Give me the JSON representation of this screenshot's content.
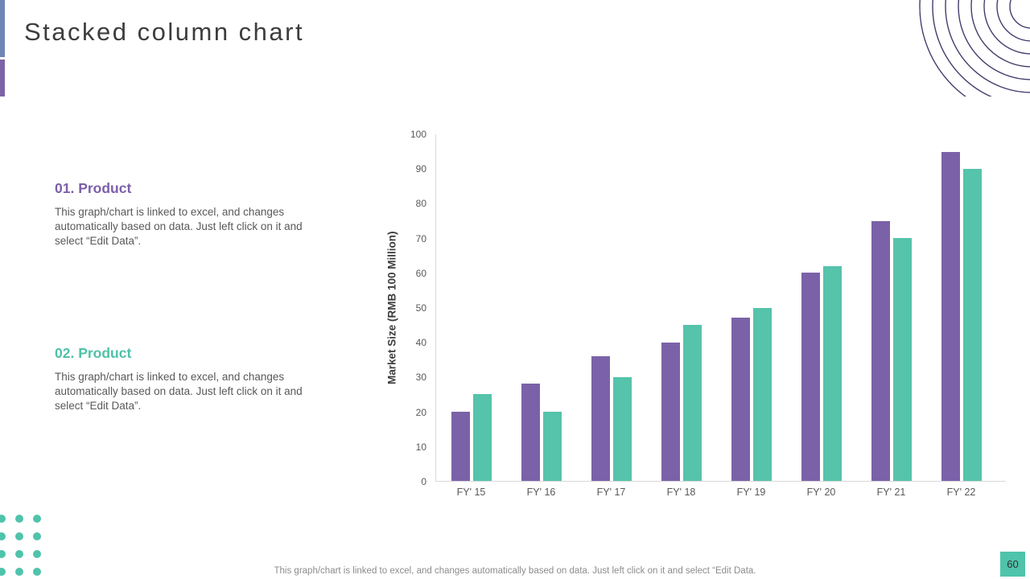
{
  "slide": {
    "title": "Stacked column chart",
    "page_number": "60",
    "footer_note": "This graph/chart is linked to excel,  and changes automatically based on data. Just left click on it and select “Edit Data."
  },
  "sections": [
    {
      "heading": "01. Product",
      "body": "This graph/chart is linked to excel, and changes automatically based on data. Just left click on it and select “Edit Data”."
    },
    {
      "heading": "02. Product",
      "body": "This graph/chart is linked to excel, and changes automatically based on data. Just left click on it and select “Edit Data”."
    }
  ],
  "chart_data": {
    "type": "bar",
    "categories": [
      "FY' 15",
      "FY' 16",
      "FY' 17",
      "FY' 18",
      "FY' 19",
      "FY' 20",
      "FY' 21",
      "FY' 22"
    ],
    "series": [
      {
        "name": "01. Product",
        "color": "#7B62A8",
        "values": [
          20,
          28,
          36,
          40,
          47,
          60,
          75,
          95
        ]
      },
      {
        "name": "02. Product",
        "color": "#56C3AB",
        "values": [
          25,
          20,
          30,
          45,
          50,
          62,
          70,
          90
        ]
      }
    ],
    "title": "",
    "xlabel": "",
    "ylabel": "Market Size (RMB 100 Million)",
    "ylim": [
      0,
      100
    ],
    "ytick_step": 10,
    "grid": false,
    "legend": "none"
  },
  "colors": {
    "purple_bar": "#7B62A8",
    "teal_bar": "#4FC3AB",
    "purple_heading": "#7B5FA9",
    "teal_heading": "#4FC1A7",
    "accent_top": "#7286B4",
    "accent_bottom": "#7D63A7",
    "circles": "#403E6B",
    "title_text": "#3D3D3D",
    "body_text": "#595959",
    "tick_text": "#595959",
    "axis_line": "#D9D9D9",
    "footer_text": "#8C8C8C"
  }
}
